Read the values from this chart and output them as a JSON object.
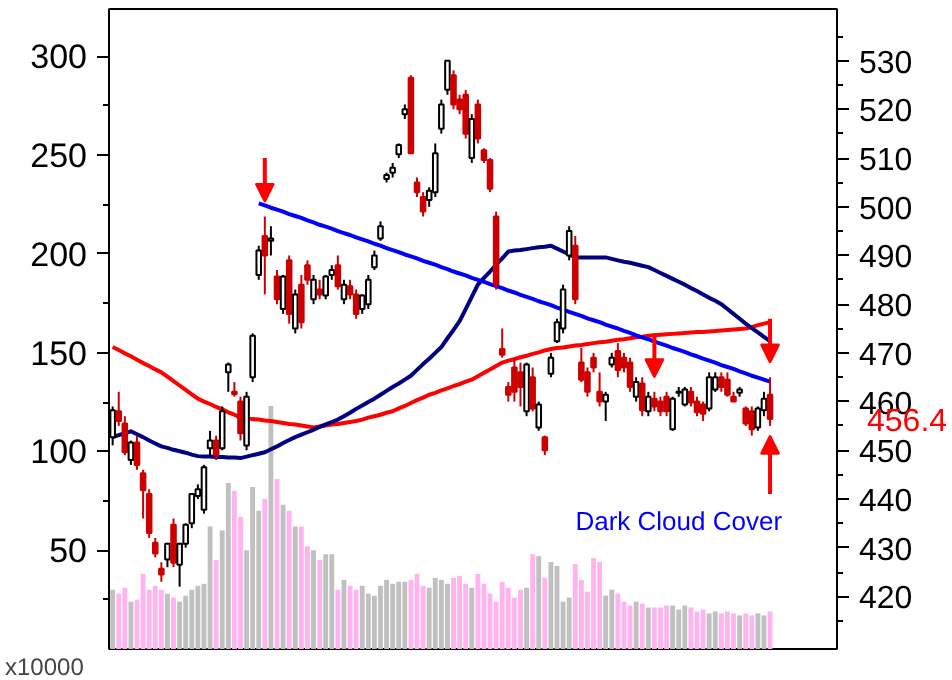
{
  "chart_data": {
    "type": "candlestick",
    "categories": [
      null,
      null,
      null,
      null,
      null,
      null,
      null,
      null,
      null,
      null,
      null,
      null,
      null,
      null,
      null,
      null,
      null,
      null,
      null,
      null,
      null,
      null,
      null,
      null,
      null,
      null,
      null,
      null,
      null,
      null,
      null,
      null,
      null,
      null,
      null,
      null,
      null,
      null,
      null,
      null,
      null,
      null,
      null,
      null,
      null,
      null,
      null,
      null,
      null,
      null,
      null,
      null,
      null,
      null,
      null,
      null,
      null,
      null,
      null,
      null,
      null,
      null,
      null,
      null,
      null,
      null,
      null,
      null,
      null,
      null,
      null,
      null,
      null,
      null,
      null,
      null,
      null,
      null,
      null,
      null,
      null,
      null,
      null,
      null,
      null,
      null,
      null,
      null,
      null,
      null,
      null,
      null,
      null,
      null,
      null,
      null,
      null,
      null,
      null,
      null,
      null,
      null,
      null,
      null,
      null,
      null,
      null,
      null,
      null
    ],
    "colors": [
      "#ffffff",
      "#cc0000",
      "#cc0000",
      "#ffffff",
      "#cc0000",
      "#cc0000",
      "#cc0000",
      "#cc0000",
      "#cc0000",
      "#ffffff",
      "#cc0000",
      "#ffffff",
      "#ffffff",
      "#ffffff",
      "#ffffff",
      "#ffffff",
      "#ffffff",
      "#cc0000",
      "#ffffff",
      "#ffffff",
      "#cc0000",
      "#cc0000",
      "#ffffff",
      "#ffffff",
      "#ffffff",
      "#cc0000",
      "#ffffff",
      "#cc0000",
      "#ffffff",
      "#cc0000",
      "#ffffff",
      "#cc0000",
      "#cc0000",
      "#ffffff",
      "#cc0000",
      "#ffffff",
      "#ffffff",
      "#cc0000",
      "#ffffff",
      "#cc0000",
      "#cc0000",
      "#ffffff",
      "#ffffff",
      "#ffffff",
      "#ffffff",
      "#ffffff",
      "#ffffff",
      "#ffffff",
      "#ffffff",
      "#cc0000",
      "#cc0000",
      "#cc0000",
      "#ffffff",
      "#ffffff",
      "#ffffff",
      "#ffffff",
      "#cc0000",
      "#cc0000",
      "#cc0000",
      "#ffffff",
      "#cc0000",
      "#cc0000",
      "#cc0000",
      "#cc0000",
      "#cc0000",
      "#cc0000",
      "#cc0000",
      "#cc0000",
      "#ffffff",
      "#cc0000",
      "#ffffff",
      "#cc0000",
      "#ffffff",
      "#ffffff",
      "#ffffff",
      "#ffffff",
      "#cc0000",
      "#cc0000",
      "#cc0000",
      "#cc0000",
      "#cc0000",
      "#ffffff",
      "#ffffff",
      "#cc0000",
      "#cc0000",
      "#cc0000",
      "#ffffff",
      "#cc0000",
      "#ffffff",
      "#cc0000",
      "#cc0000",
      "#cc0000",
      "#ffffff",
      "#ffffff",
      "#ffffff",
      "#cc0000",
      "#cc0000",
      "#cc0000",
      "#ffffff",
      "#ffffff",
      "#cc0000",
      "#cc0000",
      "#cc0000",
      "#ffffff",
      "#cc0000",
      "#cc0000",
      "#ffffff",
      "#ffffff",
      "#cc0000"
    ],
    "ylim": [
      409.2,
      540.6
    ],
    "yticks": [
      420,
      430,
      440,
      450,
      460,
      470,
      480,
      490,
      500,
      510,
      520,
      530
    ],
    "y2lim": [
      0,
      324
    ],
    "y2ticks": [
      50,
      100,
      150,
      200,
      250,
      300
    ],
    "ohlc": [
      [
        452.7,
        459,
        451,
        458.2
      ],
      [
        458,
        462,
        455,
        456
      ],
      [
        455.5,
        457,
        449,
        449.6
      ],
      [
        448,
        452,
        447,
        451.6
      ],
      [
        451.6,
        453,
        446,
        447
      ],
      [
        445.3,
        446,
        436,
        441.8
      ],
      [
        441,
        442,
        432,
        433
      ],
      [
        431,
        432,
        428,
        428.8
      ],
      [
        425.7,
        427,
        423,
        424.5
      ],
      [
        427.6,
        431,
        426,
        430.8
      ],
      [
        434.7,
        436,
        426,
        426.9
      ],
      [
        426.5,
        431,
        422,
        430.8
      ],
      [
        430.8,
        435,
        430,
        434.7
      ],
      [
        435,
        441,
        434,
        441
      ],
      [
        440.6,
        443,
        440,
        442
      ],
      [
        437.8,
        447,
        437,
        446.5
      ],
      [
        450.4,
        454,
        449,
        452
      ],
      [
        452,
        453,
        448,
        449
      ],
      [
        450.4,
        459,
        450,
        458
      ],
      [
        466,
        468,
        462,
        467.6
      ],
      [
        462,
        464,
        461,
        461.5
      ],
      [
        460,
        461,
        452,
        453.5
      ],
      [
        451,
        462,
        450,
        461
      ],
      [
        465,
        474,
        464,
        473.5
      ],
      [
        486,
        492,
        485,
        491
      ],
      [
        494,
        498,
        482,
        490
      ],
      [
        493,
        496,
        490,
        493.5
      ],
      [
        485.7,
        487,
        480,
        481
      ],
      [
        479,
        486,
        478,
        485.7
      ],
      [
        489,
        490,
        476,
        478
      ],
      [
        475,
        483,
        474,
        482
      ],
      [
        484,
        486,
        475,
        476.3
      ],
      [
        488,
        489,
        484,
        485
      ],
      [
        481,
        486,
        480,
        485
      ],
      [
        483,
        485,
        481,
        482
      ],
      [
        481.8,
        486,
        481,
        485.7
      ],
      [
        486,
        488,
        485,
        487
      ],
      [
        488,
        490,
        483,
        483.7
      ],
      [
        481,
        485,
        480,
        484
      ],
      [
        483.7,
        485,
        481,
        482
      ],
      [
        482,
        483,
        477,
        478
      ],
      [
        479,
        482,
        478,
        481.8
      ],
      [
        480,
        486,
        479,
        485
      ],
      [
        487.6,
        491,
        487,
        490
      ],
      [
        493.5,
        497,
        493,
        496
      ],
      [
        505.7,
        507,
        505,
        506.5
      ],
      [
        507,
        509,
        506,
        508
      ],
      [
        510.8,
        513,
        510,
        512.7
      ],
      [
        519,
        521,
        518,
        520
      ],
      [
        526.5,
        527,
        511,
        511
      ],
      [
        505,
        506,
        502,
        503
      ],
      [
        502,
        503,
        498,
        499
      ],
      [
        501.4,
        504,
        500,
        503.3
      ],
      [
        503,
        513,
        502,
        511
      ],
      [
        516,
        522,
        515,
        521
      ],
      [
        524,
        530,
        523,
        530
      ],
      [
        527,
        528,
        520,
        521
      ],
      [
        522,
        523,
        519,
        520
      ],
      [
        523,
        524,
        514,
        515
      ],
      [
        510,
        519,
        509,
        518
      ],
      [
        521,
        522,
        513,
        514
      ],
      [
        511.6,
        512,
        509,
        509.6
      ],
      [
        509.6,
        510,
        503,
        503.7
      ],
      [
        498,
        499,
        483,
        484
      ],
      [
        470.8,
        475,
        469,
        469.6
      ],
      [
        463,
        464,
        460,
        461.4
      ],
      [
        467,
        469,
        460,
        462
      ],
      [
        466,
        468,
        459,
        463
      ],
      [
        458,
        468,
        457,
        467.6
      ],
      [
        465,
        467,
        458,
        458.6
      ],
      [
        454.7,
        460,
        454,
        459.4
      ],
      [
        452.7,
        453,
        449,
        450
      ],
      [
        465.7,
        470,
        465,
        469
      ],
      [
        472.4,
        477,
        472,
        476.3
      ],
      [
        475,
        484,
        474,
        483
      ],
      [
        490,
        496,
        489,
        495
      ],
      [
        492,
        494,
        480,
        481
      ],
      [
        468,
        471,
        464,
        464.5
      ],
      [
        466,
        467,
        461,
        462
      ],
      [
        469,
        470,
        466,
        467
      ],
      [
        462,
        466,
        459,
        460
      ],
      [
        460,
        462,
        456,
        461.4
      ],
      [
        467.6,
        470,
        467,
        469
      ],
      [
        470.4,
        472,
        465,
        466.5
      ],
      [
        469,
        470,
        466,
        467
      ],
      [
        468,
        469,
        462,
        463
      ],
      [
        461,
        465,
        460,
        464
      ],
      [
        463.7,
        465,
        457,
        458.2
      ],
      [
        458,
        462,
        457,
        461
      ],
      [
        460.6,
        462,
        458,
        459
      ],
      [
        460,
        461,
        457,
        458
      ],
      [
        461,
        462,
        457,
        458
      ],
      [
        454.3,
        461,
        454,
        460.6
      ],
      [
        461.8,
        463,
        461,
        462
      ],
      [
        459.4,
        463,
        459,
        462.5
      ],
      [
        462,
        463,
        459,
        459.8
      ],
      [
        460,
        461,
        457,
        457.8
      ],
      [
        459.4,
        460,
        456,
        457.5
      ],
      [
        458.6,
        466,
        458,
        465
      ],
      [
        462.5,
        466,
        462,
        465
      ],
      [
        465,
        466,
        462,
        463
      ],
      [
        464.5,
        466,
        461,
        461.4
      ],
      [
        461,
        462,
        460,
        460
      ],
      [
        461.8,
        463,
        461,
        462.5
      ],
      [
        458.6,
        459,
        455,
        455.5
      ],
      [
        458,
        459,
        453,
        454.3
      ],
      [
        454.7,
        459,
        454,
        458.6
      ],
      [
        458.2,
        462,
        457,
        460.6
      ],
      [
        461.4,
        465,
        455,
        456.4
      ]
    ],
    "series": [
      {
        "type": "bar",
        "axis": "y2",
        "values": [
          30,
          28,
          31,
          24,
          25,
          38,
          30,
          32,
          30,
          28,
          26,
          24,
          27,
          30,
          32,
          33,
          62,
          45,
          60,
          84,
          80,
          67,
          50,
          82,
          70,
          76,
          123,
          86,
          73,
          70,
          62,
          62,
          52,
          50,
          45,
          48,
          48,
          30,
          35,
          32,
          30,
          32,
          28,
          27,
          32,
          35,
          33,
          34,
          34,
          35,
          38,
          32,
          31,
          36,
          35,
          33,
          36,
          37,
          33,
          31,
          38,
          33,
          28,
          24,
          34,
          31,
          26,
          30,
          31,
          48,
          47,
          36,
          44,
          42,
          24,
          26,
          43,
          35,
          29,
          46,
          44,
          27,
          30,
          28,
          24,
          22,
          24,
          23,
          21,
          21,
          21,
          22,
          22,
          20,
          22,
          21,
          19,
          20,
          18,
          19,
          18,
          19,
          18,
          17,
          18,
          17,
          18,
          17,
          19
        ],
        "colors": [
          "#c0c0c0",
          "#ffb4f0",
          "#ffb4f0",
          "#c0c0c0",
          "#ffb4f0",
          "#ffb4f0",
          "#ffb4f0",
          "#ffb4f0",
          "#ffb4f0",
          "#c0c0c0",
          "#ffb4f0",
          "#c0c0c0",
          "#c0c0c0",
          "#c0c0c0",
          "#c0c0c0",
          "#c0c0c0",
          "#c0c0c0",
          "#ffb4f0",
          "#c0c0c0",
          "#c0c0c0",
          "#ffb4f0",
          "#ffb4f0",
          "#c0c0c0",
          "#c0c0c0",
          "#c0c0c0",
          "#ffb4f0",
          "#c0c0c0",
          "#ffb4f0",
          "#c0c0c0",
          "#ffb4f0",
          "#c0c0c0",
          "#ffb4f0",
          "#ffb4f0",
          "#c0c0c0",
          "#ffb4f0",
          "#c0c0c0",
          "#c0c0c0",
          "#ffb4f0",
          "#c0c0c0",
          "#ffb4f0",
          "#ffb4f0",
          "#c0c0c0",
          "#c0c0c0",
          "#c0c0c0",
          "#c0c0c0",
          "#c0c0c0",
          "#c0c0c0",
          "#c0c0c0",
          "#c0c0c0",
          "#ffb4f0",
          "#ffb4f0",
          "#ffb4f0",
          "#c0c0c0",
          "#c0c0c0",
          "#c0c0c0",
          "#c0c0c0",
          "#ffb4f0",
          "#ffb4f0",
          "#ffb4f0",
          "#c0c0c0",
          "#ffb4f0",
          "#ffb4f0",
          "#ffb4f0",
          "#ffb4f0",
          "#ffb4f0",
          "#ffb4f0",
          "#ffb4f0",
          "#ffb4f0",
          "#c0c0c0",
          "#ffb4f0",
          "#c0c0c0",
          "#ffb4f0",
          "#c0c0c0",
          "#c0c0c0",
          "#c0c0c0",
          "#c0c0c0",
          "#ffb4f0",
          "#ffb4f0",
          "#ffb4f0",
          "#ffb4f0",
          "#ffb4f0",
          "#c0c0c0",
          "#c0c0c0",
          "#ffb4f0",
          "#ffb4f0",
          "#ffb4f0",
          "#c0c0c0",
          "#ffb4f0",
          "#c0c0c0",
          "#ffb4f0",
          "#ffb4f0",
          "#ffb4f0",
          "#c0c0c0",
          "#c0c0c0",
          "#c0c0c0",
          "#ffb4f0",
          "#ffb4f0",
          "#ffb4f0",
          "#c0c0c0",
          "#c0c0c0",
          "#ffb4f0",
          "#ffb4f0",
          "#ffb4f0",
          "#c0c0c0",
          "#ffb4f0",
          "#ffb4f0",
          "#c0c0c0",
          "#c0c0c0",
          "#ffb4f0"
        ]
      },
      {
        "type": "line",
        "color": "#ff0000",
        "values": [
          471.2,
          470.6,
          469.9,
          469.3,
          468.6,
          467.9,
          467.3,
          466.6,
          466,
          465.1,
          464.2,
          463.3,
          462.4,
          461.5,
          460.6,
          460,
          459.5,
          458.9,
          458.4,
          457.8,
          457.3,
          456.7,
          456.6,
          456.4,
          456.3,
          456.1,
          456,
          455.8,
          455.6,
          455.4,
          455.3,
          455.1,
          454.9,
          454.7,
          454.9,
          455.1,
          455.3,
          455.4,
          455.6,
          455.8,
          456,
          456.3,
          456.7,
          457,
          457.3,
          457.7,
          458,
          458.6,
          459.1,
          459.7,
          460.3,
          460.8,
          461.4,
          461.8,
          462.3,
          462.7,
          463.2,
          463.6,
          464.1,
          464.5,
          465.2,
          465.9,
          466.6,
          467.3,
          468,
          468.4,
          468.7,
          469.1,
          469.4,
          469.8,
          470.1,
          470.5,
          470.8,
          471,
          471.1,
          471.3,
          471.5,
          471.6,
          471.8,
          472,
          472.2,
          472.3,
          472.5,
          472.7,
          472.8,
          473,
          473.2,
          473.3,
          473.5,
          473.6,
          473.7,
          473.8,
          473.9,
          474,
          474.1,
          474.2,
          474.3,
          474.3,
          474.4,
          474.5,
          474.6,
          474.7,
          474.8,
          474.9,
          475,
          475.3,
          475.7,
          476,
          476.3
        ]
      },
      {
        "type": "line",
        "color": "#000080",
        "values": [
          452.7,
          453.1,
          453.5,
          453.9,
          453.3,
          452.7,
          452,
          451.4,
          450.8,
          450.5,
          450.1,
          449.8,
          449.5,
          449.1,
          448.8,
          448.7,
          448.7,
          448.6,
          448.6,
          448.5,
          448.5,
          448.4,
          448.7,
          449,
          449.3,
          449.6,
          450.2,
          450.8,
          451.5,
          452.1,
          452.7,
          453.2,
          453.7,
          454.2,
          454.8,
          455.3,
          455.8,
          456.3,
          457,
          457.7,
          458.5,
          459.2,
          459.9,
          460.6,
          461.4,
          462.2,
          463,
          463.7,
          464.5,
          465.3,
          466.5,
          467.7,
          468.8,
          470,
          471.2,
          473,
          474.7,
          476.5,
          479,
          481.5,
          484,
          485.4,
          486.7,
          488.1,
          489.4,
          490.8,
          491,
          491.1,
          491.3,
          491.5,
          491.7,
          491.8,
          492,
          491.4,
          490.8,
          490.2,
          489.6,
          489.6,
          489.6,
          489.6,
          489.6,
          489.6,
          489.3,
          489,
          488.7,
          488.5,
          488.2,
          487.9,
          487.6,
          487,
          486.4,
          485.8,
          485.2,
          484.6,
          484,
          483.3,
          482.7,
          482,
          481.3,
          480.7,
          480,
          479,
          478,
          477,
          476,
          475.1,
          474.2,
          473.3,
          472.4
        ]
      },
      {
        "type": "line",
        "color": "#0000ff",
        "values": [
          null,
          null,
          null,
          null,
          null,
          null,
          null,
          null,
          null,
          null,
          null,
          null,
          null,
          null,
          null,
          null,
          null,
          null,
          null,
          null,
          null,
          null,
          null,
          null,
          500.7,
          500.3,
          499.8,
          499.4,
          499,
          498.5,
          498.1,
          497.7,
          497.2,
          496.8,
          496.3,
          495.9,
          495.5,
          495,
          494.6,
          494.2,
          493.7,
          493.3,
          492.9,
          492.4,
          492,
          491.5,
          491.1,
          490.7,
          490.2,
          489.8,
          489.4,
          488.9,
          488.5,
          488.1,
          487.6,
          487.2,
          486.7,
          486.3,
          485.9,
          485.4,
          485,
          484.6,
          484.1,
          483.7,
          483.3,
          482.8,
          482.4,
          481.9,
          481.5,
          481.1,
          480.6,
          480.2,
          479.8,
          479.3,
          478.9,
          478.4,
          478,
          477.6,
          477.1,
          476.7,
          476.3,
          475.8,
          475.4,
          475,
          474.5,
          474.1,
          473.6,
          473.2,
          472.8,
          472.3,
          471.9,
          471.5,
          471,
          470.6,
          470.2,
          469.7,
          469.3,
          468.8,
          468.4,
          468,
          467.5,
          467.1,
          466.7,
          466.2,
          465.8,
          465.3,
          464.9,
          464.5,
          464.1
        ]
      }
    ],
    "annotations": [
      "x10000",
      "456.4",
      "Dark Cloud Cover"
    ]
  }
}
